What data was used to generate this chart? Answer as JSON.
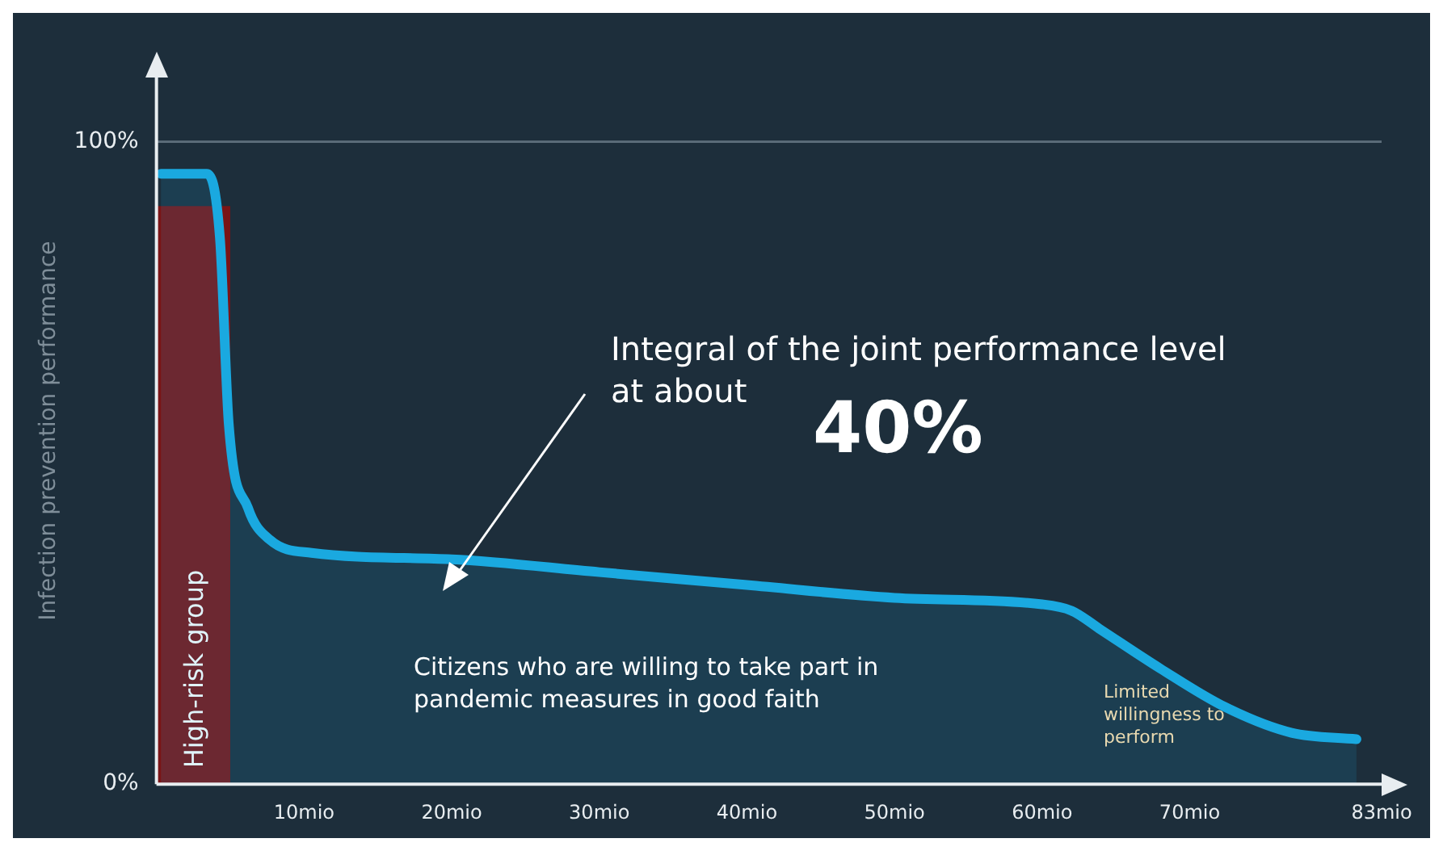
{
  "chart_data": {
    "type": "area",
    "ylabel": "Infection prevention performance",
    "x": [
      0.3,
      3.4,
      4.3,
      4.9,
      6.2,
      7.7,
      10.5,
      20,
      30,
      40,
      50,
      60,
      62,
      64,
      68,
      72.4,
      76.9,
      81.3
    ],
    "series": [
      {
        "color": "#1aa9e0",
        "values": [
          95,
          95,
          85,
          56,
          43,
          38,
          36,
          35,
          33,
          31,
          29,
          28,
          27,
          24,
          18,
          12,
          8,
          7
        ]
      }
    ],
    "xlim": [
      0,
      83
    ],
    "ylim": [
      0,
      110
    ],
    "xticks": [
      {
        "value": 10,
        "label": "10mio"
      },
      {
        "value": 20,
        "label": "20mio"
      },
      {
        "value": 30,
        "label": "30mio"
      },
      {
        "value": 40,
        "label": "40mio"
      },
      {
        "value": 50,
        "label": "50mio"
      },
      {
        "value": 60,
        "label": "60mio"
      },
      {
        "value": 70,
        "label": "70mio"
      },
      {
        "value": 83,
        "label": "83mio"
      }
    ],
    "yticks": [
      {
        "value": 0,
        "label": "0%"
      },
      {
        "value": 100,
        "label": "100%"
      }
    ],
    "ref_lines": [
      {
        "axis": "y",
        "value": 100,
        "color": "#5a6b78"
      }
    ],
    "bands": [
      {
        "axis": "x",
        "from": 0,
        "to": 5,
        "label": "High-risk group",
        "color": "#7a1416"
      }
    ],
    "annotations": [
      "Integral of the joint performance level at about",
      "40%",
      "Citizens who are willing to take part in pandemic measures in good faith",
      "Limited willingness to perform"
    ],
    "grid": false,
    "legend": false,
    "marker": "none",
    "line_style": "solid"
  }
}
